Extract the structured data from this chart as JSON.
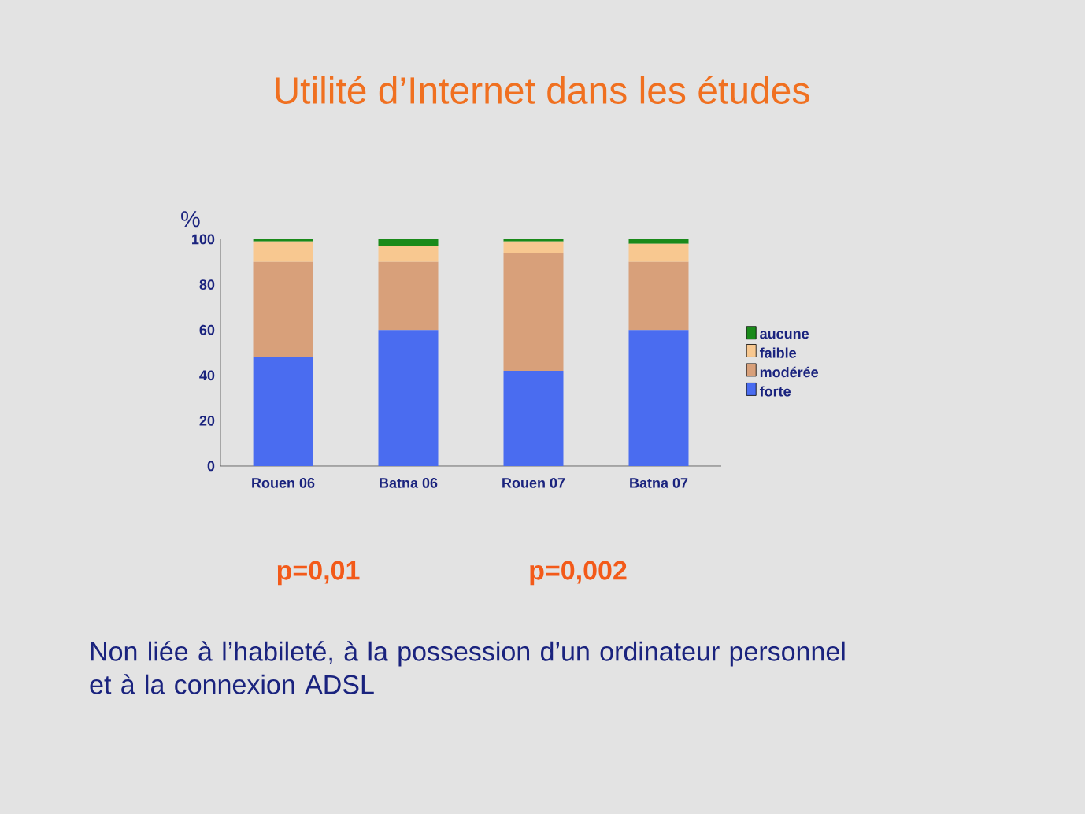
{
  "chart_data": {
    "type": "bar",
    "stacked": true,
    "title": "Utilité d’Internet dans les études",
    "ylabel": "%",
    "categories": [
      "Rouen 06",
      "Batna 06",
      "Rouen 07",
      "Batna 07"
    ],
    "series": [
      {
        "name": "forte",
        "color": "#4a6cf0",
        "values": [
          48,
          60,
          42,
          60
        ]
      },
      {
        "name": "modérée",
        "color": "#d8a07a",
        "values": [
          42,
          30,
          52,
          30
        ]
      },
      {
        "name": "faible",
        "color": "#f8c890",
        "values": [
          9,
          7,
          5,
          8
        ]
      },
      {
        "name": "aucune",
        "color": "#1a8a1a",
        "values": [
          1,
          3,
          1,
          2
        ]
      }
    ],
    "ylim": [
      0,
      100
    ],
    "yticks": [
      0,
      20,
      40,
      60,
      80,
      100
    ],
    "legend": "right",
    "grid": false,
    "annotations": [
      "p=0,01",
      "p=0,002",
      "Non liée à l’habileté, à la possession d’un ordinateur personnel et à la connexion ADSL"
    ]
  }
}
